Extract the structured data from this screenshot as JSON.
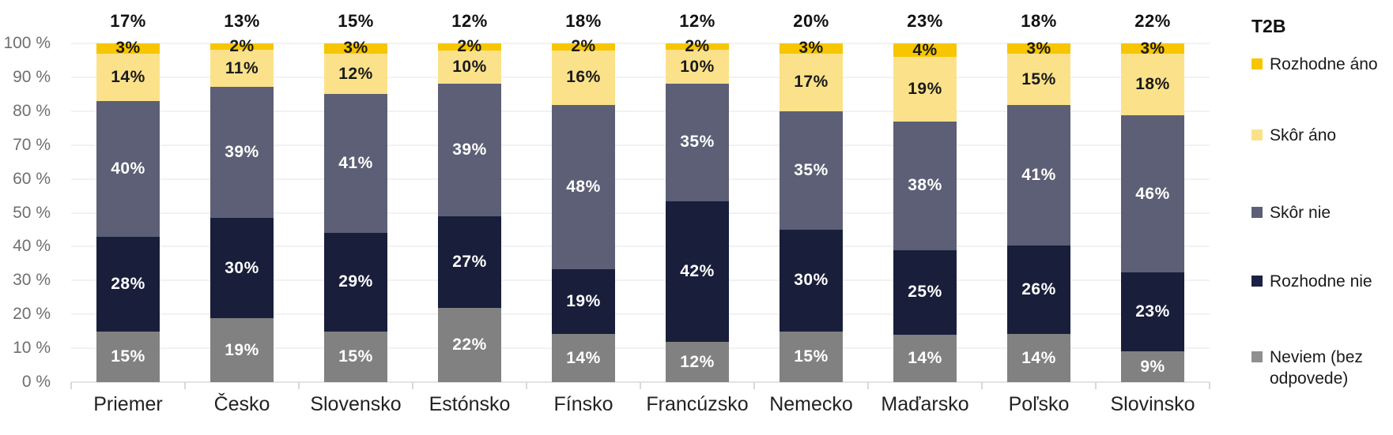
{
  "chart_data": {
    "type": "bar",
    "stacked": true,
    "unit": "%",
    "title": "",
    "xlabel": "",
    "ylabel": "",
    "ylim": [
      0,
      100
    ],
    "grid": true,
    "legend_position": "right",
    "categories": [
      "Priemer",
      "Česko",
      "Slovensko",
      "Estónsko",
      "Fínsko",
      "Francúzsko",
      "Nemecko",
      "Maďarsko",
      "Poľsko",
      "Slovinsko"
    ],
    "t2b_label": "T2B",
    "t2b_values": [
      "17%",
      "13%",
      "15%",
      "12%",
      "18%",
      "12%",
      "20%",
      "23%",
      "18%",
      "22%"
    ],
    "y_ticks": [
      "0 %",
      "10 %",
      "20 %",
      "30 %",
      "40 %",
      "50 %",
      "60 %",
      "70 %",
      "80 %",
      "90 %",
      "100 %"
    ],
    "stack_order": "bottom-to-top",
    "series": [
      {
        "name": "Neviem (bez odpovede)",
        "color": "#818181",
        "label_color": "#ffffff",
        "values": [
          15,
          19,
          15,
          22,
          14,
          12,
          15,
          14,
          14,
          9
        ]
      },
      {
        "name": "Rozhodne nie",
        "color": "#191e3b",
        "label_color": "#ffffff",
        "values": [
          28,
          30,
          29,
          27,
          19,
          42,
          30,
          25,
          26,
          23
        ]
      },
      {
        "name": "Skôr nie",
        "color": "#5c5f75",
        "label_color": "#ffffff",
        "values": [
          40,
          39,
          41,
          39,
          48,
          35,
          35,
          38,
          41,
          46
        ]
      },
      {
        "name": "Skôr áno",
        "color": "#fbe28a",
        "label_color": "#1a1a1a",
        "values": [
          14,
          11,
          12,
          10,
          16,
          10,
          17,
          19,
          15,
          18
        ]
      },
      {
        "name": "Rozhodne áno",
        "color": "#f7c600",
        "label_color": "#1a1a1a",
        "values": [
          3,
          2,
          3,
          2,
          2,
          2,
          3,
          4,
          3,
          3
        ]
      }
    ],
    "legend": [
      {
        "label": "Rozhodne áno",
        "color": "#f7c600"
      },
      {
        "label": "Skôr áno",
        "color": "#fbe28a"
      },
      {
        "label": "Skôr nie",
        "color": "#5c5f75"
      },
      {
        "label": "Rozhodne nie",
        "color": "#1b2140"
      },
      {
        "label": "Neviem (bez odpovede)",
        "color": "#8f8f8f"
      }
    ]
  }
}
